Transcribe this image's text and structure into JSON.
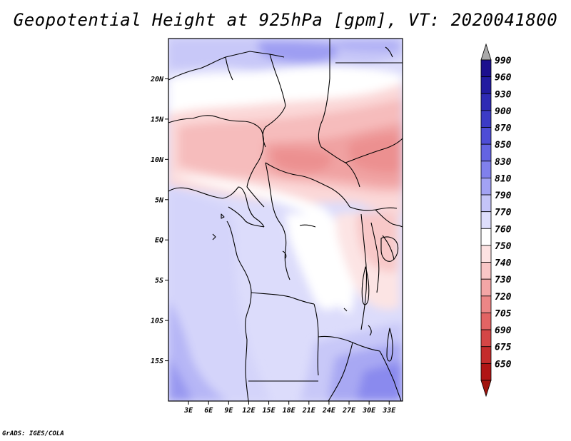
{
  "title": "Geopotential Height at 925hPa [gpm], VT: 2020041800",
  "footer": "GrADS: IGES/COLA",
  "map": {
    "lon_range": [
      0,
      35
    ],
    "lat_range": [
      -20,
      25
    ],
    "x_ticks": [
      {
        "lon": 3,
        "label": "3E"
      },
      {
        "lon": 6,
        "label": "6E"
      },
      {
        "lon": 9,
        "label": "9E"
      },
      {
        "lon": 12,
        "label": "12E"
      },
      {
        "lon": 15,
        "label": "15E"
      },
      {
        "lon": 18,
        "label": "18E"
      },
      {
        "lon": 21,
        "label": "21E"
      },
      {
        "lon": 24,
        "label": "24E"
      },
      {
        "lon": 27,
        "label": "27E"
      },
      {
        "lon": 30,
        "label": "30E"
      },
      {
        "lon": 33,
        "label": "33E"
      }
    ],
    "y_ticks": [
      {
        "lat": 20,
        "label": "20N"
      },
      {
        "lat": 15,
        "label": "15N"
      },
      {
        "lat": 10,
        "label": "10N"
      },
      {
        "lat": 5,
        "label": "5N"
      },
      {
        "lat": 0,
        "label": "EQ"
      },
      {
        "lat": -5,
        "label": "5S"
      },
      {
        "lat": -10,
        "label": "10S"
      },
      {
        "lat": -15,
        "label": "15S"
      }
    ]
  },
  "colorbar": {
    "levels": [
      {
        "label": "990",
        "color": "#1c0f8e"
      },
      {
        "label": "960",
        "color": "#221ba0"
      },
      {
        "label": "930",
        "color": "#2e2ab4"
      },
      {
        "label": "900",
        "color": "#3c3bc6"
      },
      {
        "label": "870",
        "color": "#4e4dd6"
      },
      {
        "label": "850",
        "color": "#6464e2"
      },
      {
        "label": "830",
        "color": "#8080ec"
      },
      {
        "label": "810",
        "color": "#a2a2f4"
      },
      {
        "label": "790",
        "color": "#c4c4f8"
      },
      {
        "label": "770",
        "color": "#dedefc"
      },
      {
        "label": "760",
        "color": "#ffffff"
      },
      {
        "label": "750",
        "color": "#fde2e2"
      },
      {
        "label": "740",
        "color": "#f9c6c6"
      },
      {
        "label": "730",
        "color": "#f3a6a6"
      },
      {
        "label": "720",
        "color": "#ec8686"
      },
      {
        "label": "705",
        "color": "#e26464"
      },
      {
        "label": "690",
        "color": "#d44646"
      },
      {
        "label": "675",
        "color": "#c42c2c"
      },
      {
        "label": "650",
        "color": "#b01414"
      }
    ],
    "top_arrow_color": "#a9a9a9",
    "bottom_arrow_color": "#a0140e"
  }
}
